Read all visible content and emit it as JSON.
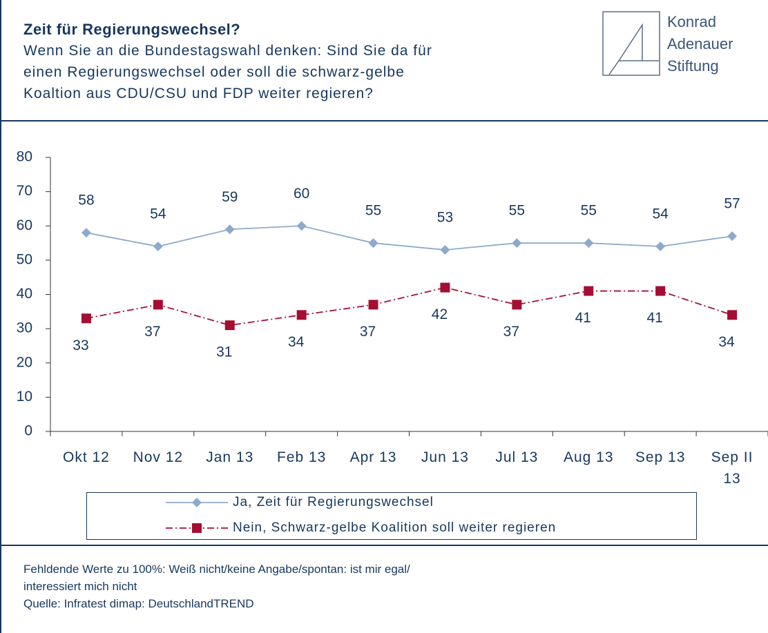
{
  "header": {
    "title": "Zeit für Regierungswechsel?",
    "subtitle": [
      "Wenn Sie an die Bundestagswahl denken: Sind Sie da für",
      "einen Regierungswechsel oder soll die schwarz-gelbe",
      "Koaltion aus CDU/CSU und FDP weiter regieren?"
    ]
  },
  "logo": [
    "Konrad",
    "Adenauer",
    "Stiftung"
  ],
  "chart_data": {
    "type": "line",
    "categories": [
      "Okt 12",
      "Nov 12",
      "Jan 13",
      "Feb 13",
      "Apr 13",
      "Jun 13",
      "Jul 13",
      "Aug 13",
      "Sep 13",
      "Sep II 13"
    ],
    "series": [
      {
        "name": "Ja, Zeit für Regierungswechsel",
        "color": "#8eaacb",
        "marker": "diamond",
        "dash": "solid",
        "values": [
          58,
          54,
          59,
          60,
          55,
          53,
          55,
          55,
          54,
          57
        ]
      },
      {
        "name": "Nein, Schwarz-gelbe Koalition soll weiter regieren",
        "color": "#a50d33",
        "marker": "square",
        "dash": "dashdot",
        "values": [
          33,
          37,
          31,
          34,
          37,
          42,
          37,
          41,
          41,
          34
        ]
      }
    ],
    "ylim": [
      0,
      80
    ],
    "yticks": [
      0,
      10,
      20,
      30,
      40,
      50,
      60,
      70,
      80
    ],
    "grid": false
  },
  "footnote": [
    "Fehldende Werte zu 100%: Weiß nicht/keine Angabe/spontan: ist mir egal/",
    "interessiert mich nicht",
    "Quelle: Infratest dimap: DeutschlandTREND"
  ]
}
